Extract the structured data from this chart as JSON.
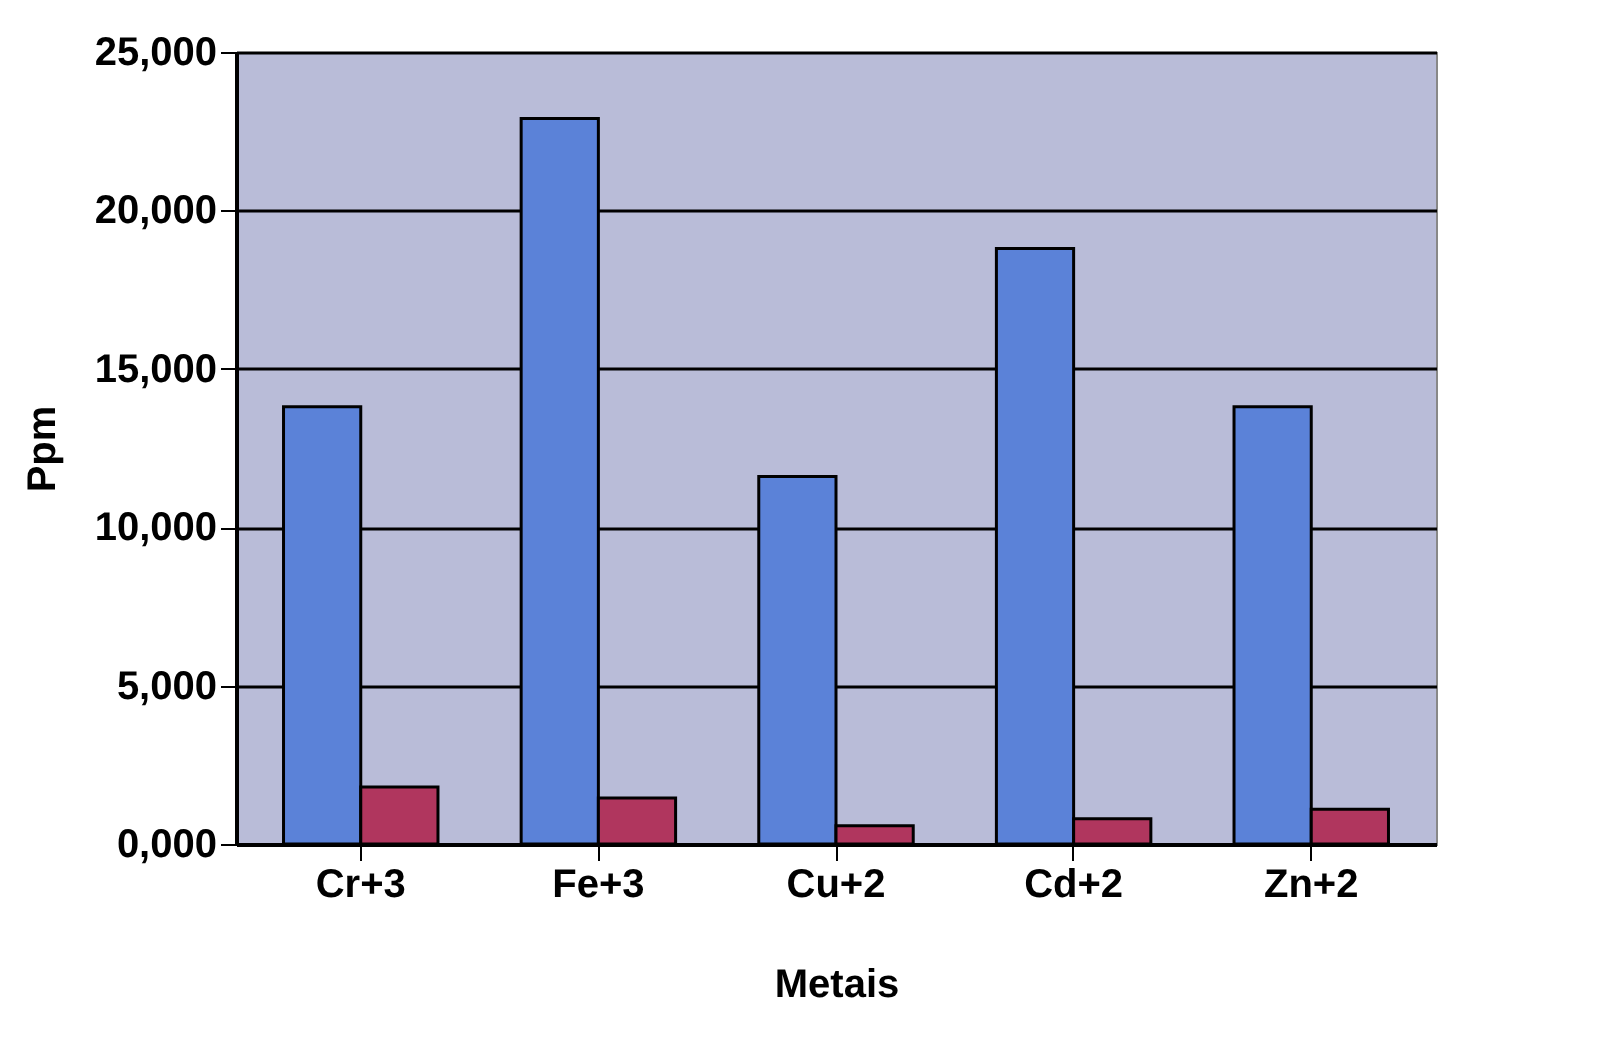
{
  "chart_data": {
    "type": "bar",
    "xlabel": "Metais",
    "ylabel": "Ppm",
    "categories": [
      "Cr+3",
      "Fe+3",
      "Cu+2",
      "Cd+2",
      "Zn+2"
    ],
    "series": [
      {
        "color": "#5b82d8",
        "values": [
          13800,
          22900,
          11600,
          18800,
          13800
        ]
      },
      {
        "color": "#b0365e",
        "values": [
          1800,
          1450,
          580,
          800,
          1100
        ]
      }
    ],
    "ylim": [
      0,
      25000
    ],
    "yticks": [
      {
        "value": 0,
        "label": "0,000"
      },
      {
        "value": 5000,
        "label": "5,000"
      },
      {
        "value": 10000,
        "label": "10,000"
      },
      {
        "value": 15000,
        "label": "15,000"
      },
      {
        "value": 20000,
        "label": "20,000"
      },
      {
        "value": 25000,
        "label": "25,000"
      }
    ],
    "grid": "y",
    "legend": false
  }
}
